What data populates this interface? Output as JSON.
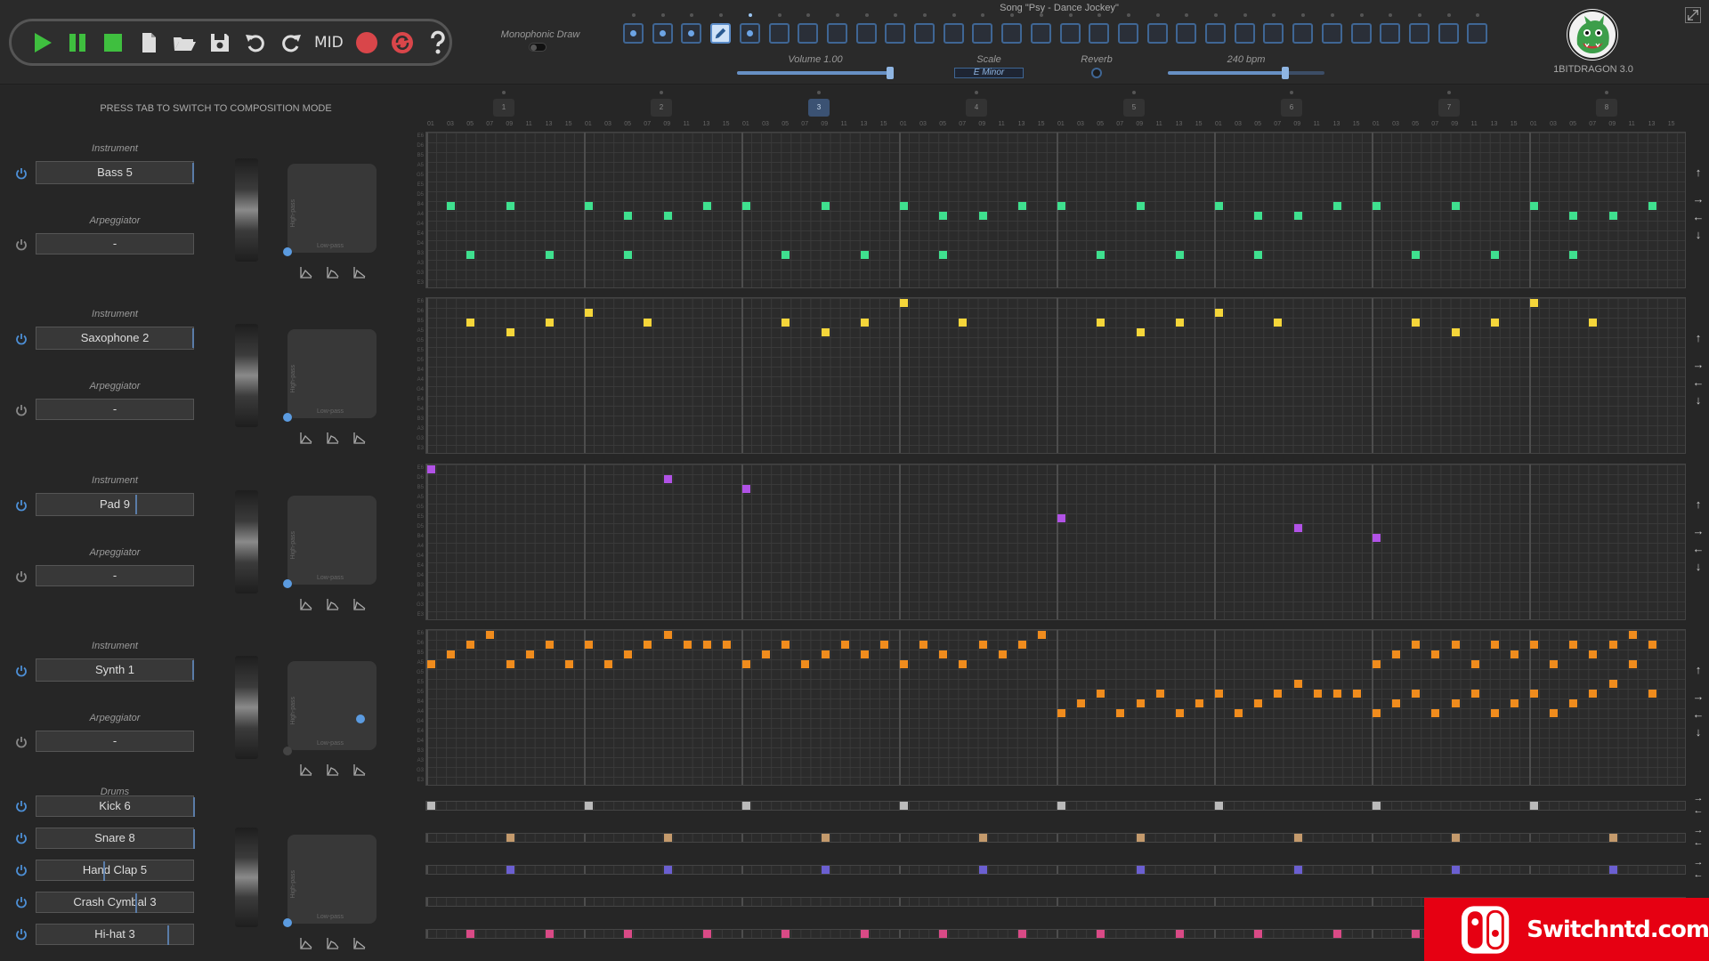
{
  "song_title": "Song \"Psy - Dance Jockey\"",
  "version": "1BITDRAGON 3.0",
  "hint": "PRESS TAB TO SWITCH TO COMPOSITION MODE",
  "transport": {
    "mid_label": "MID"
  },
  "monophonic_label": "Monophonic Draw",
  "volume_label": "Volume 1.00",
  "volume_level": 1.0,
  "scale_label": "Scale",
  "scale_value": "E Minor",
  "reverb_label": "Reverb",
  "tempo_label": "240 bpm",
  "tempo_fraction": 0.75,
  "patterns": {
    "count": 30,
    "filled": [
      0,
      1,
      2,
      4
    ],
    "active": 3,
    "playing": 4
  },
  "bars": [
    "1",
    "2",
    "3",
    "4",
    "5",
    "6",
    "7",
    "8"
  ],
  "active_bar": 3,
  "step_labels": [
    "01",
    "03",
    "05",
    "07",
    "09",
    "11",
    "13",
    "15"
  ],
  "instruments": [
    {
      "section_label": "Instrument",
      "name": "Bass 5",
      "arp_label": "Arpeggiator",
      "arp_value": "-",
      "color": "#3fe08f",
      "notes": [
        [
          1,
          7
        ],
        [
          2,
          12
        ],
        [
          4,
          7
        ],
        [
          6,
          12
        ],
        [
          8,
          7
        ],
        [
          10,
          8
        ],
        [
          10,
          12
        ],
        [
          12,
          8
        ],
        [
          14,
          7
        ],
        [
          16,
          7
        ],
        [
          18,
          12
        ],
        [
          20,
          7
        ],
        [
          22,
          12
        ],
        [
          24,
          7
        ],
        [
          26,
          8
        ],
        [
          26,
          12
        ],
        [
          28,
          8
        ],
        [
          30,
          7
        ],
        [
          32,
          7
        ],
        [
          34,
          12
        ],
        [
          36,
          7
        ],
        [
          38,
          12
        ],
        [
          40,
          7
        ],
        [
          42,
          8
        ],
        [
          42,
          12
        ],
        [
          44,
          8
        ],
        [
          46,
          7
        ],
        [
          48,
          7
        ],
        [
          50,
          12
        ],
        [
          52,
          7
        ],
        [
          54,
          12
        ],
        [
          56,
          7
        ],
        [
          58,
          8
        ],
        [
          58,
          12
        ],
        [
          60,
          8
        ],
        [
          62,
          7
        ]
      ]
    },
    {
      "section_label": "Instrument",
      "name": "Saxophone 2",
      "arp_label": "Arpeggiator",
      "arp_value": "-",
      "color": "#f5d63a",
      "notes": [
        [
          2,
          2
        ],
        [
          4,
          3
        ],
        [
          6,
          2
        ],
        [
          8,
          1
        ],
        [
          11,
          2
        ],
        [
          18,
          2
        ],
        [
          20,
          3
        ],
        [
          22,
          2
        ],
        [
          24,
          0
        ],
        [
          27,
          2
        ],
        [
          34,
          2
        ],
        [
          36,
          3
        ],
        [
          38,
          2
        ],
        [
          40,
          1
        ],
        [
          43,
          2
        ],
        [
          50,
          2
        ],
        [
          52,
          3
        ],
        [
          54,
          2
        ],
        [
          56,
          0
        ],
        [
          59,
          2
        ]
      ]
    },
    {
      "section_label": "Instrument",
      "name": "Pad 9",
      "arp_label": "Arpeggiator",
      "arp_value": "-",
      "color": "#b152e6",
      "notes": [
        [
          0,
          0
        ],
        [
          12,
          1
        ],
        [
          16,
          2
        ],
        [
          32,
          5
        ],
        [
          44,
          6
        ],
        [
          48,
          7
        ]
      ]
    },
    {
      "section_label": "Instrument",
      "name": "Synth 1",
      "arp_label": "Arpeggiator",
      "arp_value": "-",
      "color": "#f08c1d",
      "notes": [
        [
          0,
          3
        ],
        [
          1,
          2
        ],
        [
          2,
          1
        ],
        [
          3,
          0
        ],
        [
          4,
          3
        ],
        [
          5,
          2
        ],
        [
          6,
          1
        ],
        [
          7,
          3
        ],
        [
          8,
          1
        ],
        [
          9,
          3
        ],
        [
          10,
          2
        ],
        [
          11,
          1
        ],
        [
          12,
          0
        ],
        [
          13,
          1
        ],
        [
          14,
          1
        ],
        [
          15,
          1
        ],
        [
          16,
          3
        ],
        [
          17,
          2
        ],
        [
          18,
          1
        ],
        [
          19,
          3
        ],
        [
          20,
          2
        ],
        [
          21,
          1
        ],
        [
          22,
          2
        ],
        [
          23,
          1
        ],
        [
          24,
          3
        ],
        [
          25,
          1
        ],
        [
          26,
          2
        ],
        [
          27,
          3
        ],
        [
          28,
          1
        ],
        [
          29,
          2
        ],
        [
          30,
          1
        ],
        [
          31,
          0
        ],
        [
          32,
          8
        ],
        [
          33,
          7
        ],
        [
          34,
          6
        ],
        [
          35,
          8
        ],
        [
          36,
          7
        ],
        [
          37,
          6
        ],
        [
          38,
          8
        ],
        [
          39,
          7
        ],
        [
          40,
          6
        ],
        [
          41,
          8
        ],
        [
          42,
          7
        ],
        [
          43,
          6
        ],
        [
          44,
          5
        ],
        [
          45,
          6
        ],
        [
          46,
          6
        ],
        [
          47,
          6
        ],
        [
          48,
          3
        ],
        [
          48,
          8
        ],
        [
          49,
          2
        ],
        [
          49,
          7
        ],
        [
          50,
          1
        ],
        [
          50,
          6
        ],
        [
          51,
          2
        ],
        [
          51,
          8
        ],
        [
          52,
          1
        ],
        [
          52,
          7
        ],
        [
          53,
          3
        ],
        [
          53,
          6
        ],
        [
          54,
          1
        ],
        [
          54,
          8
        ],
        [
          55,
          2
        ],
        [
          55,
          7
        ],
        [
          56,
          1
        ],
        [
          56,
          6
        ],
        [
          57,
          3
        ],
        [
          57,
          8
        ],
        [
          58,
          1
        ],
        [
          58,
          7
        ],
        [
          59,
          2
        ],
        [
          59,
          6
        ],
        [
          60,
          1
        ],
        [
          60,
          5
        ],
        [
          61,
          0
        ],
        [
          61,
          3
        ],
        [
          62,
          1
        ],
        [
          62,
          6
        ]
      ]
    }
  ],
  "drums_label": "Drums",
  "drums": [
    {
      "name": "Kick 6",
      "color": "#bbbbbb",
      "steps": [
        0,
        8,
        16,
        24,
        32,
        40,
        48,
        56
      ]
    },
    {
      "name": "Snare 8",
      "color": "#c49a6c",
      "steps": [
        4,
        12,
        20,
        28,
        36,
        44,
        52,
        60
      ]
    },
    {
      "name": "Hand Clap 5",
      "color": "#6b5fd1",
      "steps": [
        4,
        12,
        20,
        28,
        36,
        44,
        52,
        60
      ]
    },
    {
      "name": "Crash Cymbal 3",
      "color": "#888888",
      "steps": []
    },
    {
      "name": "Hi-hat 3",
      "color": "#d94a86",
      "steps": [
        2,
        6,
        10,
        14,
        18,
        22,
        26,
        30,
        34,
        38,
        42,
        46,
        50,
        54,
        58,
        62
      ]
    }
  ],
  "xy_labels": {
    "high": "High-pass",
    "low": "Low-pass"
  },
  "note_names": [
    "E6",
    "D6",
    "B5",
    "A5",
    "G5",
    "E5",
    "D5",
    "B4",
    "A4",
    "G4",
    "E4",
    "D4",
    "B3",
    "A3",
    "G3",
    "E3"
  ],
  "watermark": "Switchntd.com"
}
